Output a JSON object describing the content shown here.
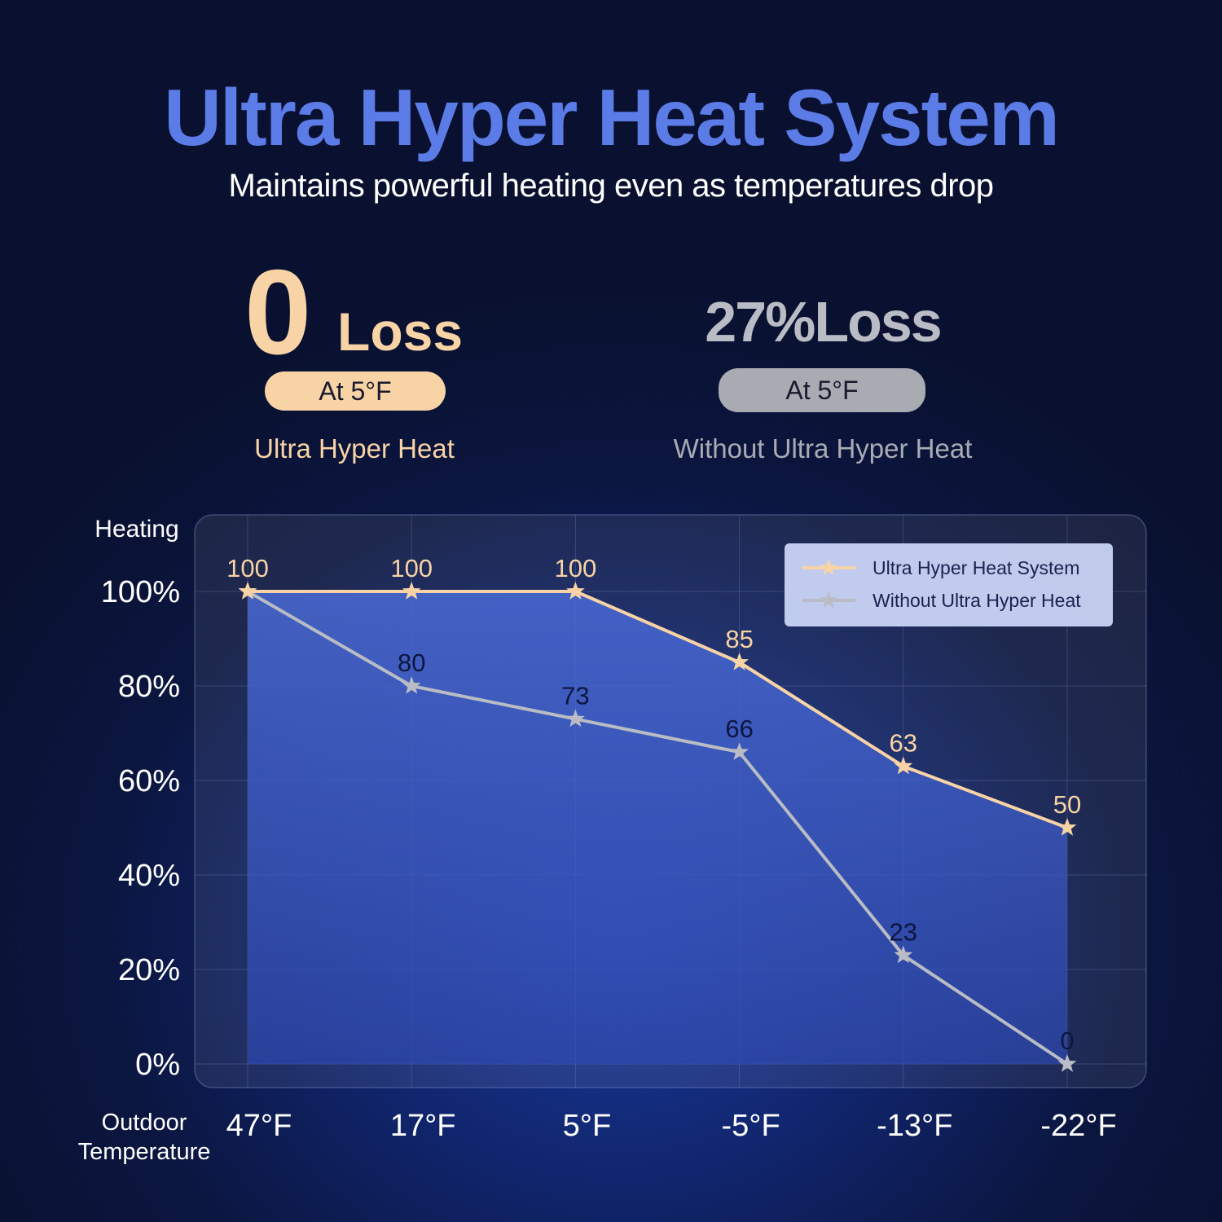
{
  "header": {
    "title": "Ultra Hyper Heat System",
    "subtitle": "Maintains powerful heating even as temperatures drop"
  },
  "stats": {
    "left": {
      "number": "0",
      "loss": "Loss",
      "condition": "At 5°F",
      "caption": "Ultra Hyper Heat"
    },
    "right": {
      "headline": "27%Loss",
      "condition": "At 5°F",
      "caption": "Without Ultra Hyper Heat"
    }
  },
  "colors": {
    "accent": "#5b7ce6",
    "with_series": "#f8d3a6",
    "without_series": "#b9bcc4"
  },
  "chart_data": {
    "type": "line",
    "ylabel": "Heating",
    "xlabel": "Outdoor Temperature",
    "categories": [
      "47°F",
      "17°F",
      "5°F",
      "-5°F",
      "-13°F",
      "-22°F"
    ],
    "y_ticks": [
      "0%",
      "20%",
      "40%",
      "60%",
      "80%",
      "100%"
    ],
    "ylim": [
      0,
      100
    ],
    "grid": true,
    "legend_position": "top-right",
    "series": [
      {
        "name": "Ultra Hyper Heat System",
        "values": [
          100,
          100,
          100,
          85,
          63,
          50
        ],
        "labels": [
          "100",
          "100",
          "100",
          "85",
          "63",
          "50"
        ],
        "marker": "star"
      },
      {
        "name": "Without Ultra Hyper Heat",
        "values": [
          100,
          80,
          73,
          66,
          23,
          0
        ],
        "labels": [
          "",
          "80",
          "73",
          "66",
          "23",
          "0"
        ],
        "marker": "star"
      }
    ]
  }
}
